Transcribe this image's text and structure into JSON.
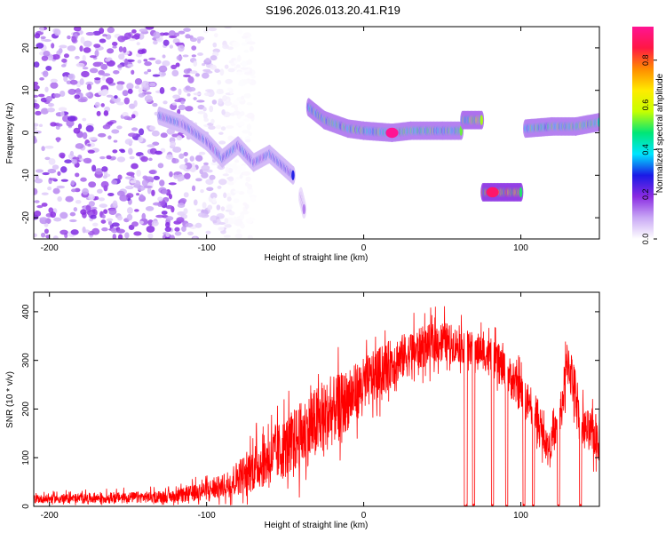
{
  "title": "S196.2026.013.20.41.R19",
  "chart_data": [
    {
      "type": "heatmap",
      "title": "S196.2026.013.20.41.R19",
      "xlabel": "Height of straight line (km)",
      "ylabel": "Frequency (Hz)",
      "xlim": [
        -210,
        150
      ],
      "ylim": [
        -25,
        25
      ],
      "xticks": [
        -200,
        -100,
        0,
        100
      ],
      "yticks": [
        -20,
        -10,
        0,
        10,
        20
      ],
      "colorbar": {
        "label": "Normalized spectral amplitude",
        "range": [
          0,
          0.95
        ],
        "ticks": [
          "0.0",
          "0.2",
          "0.4",
          "0.6",
          "0.8"
        ],
        "tick_values": [
          0.0,
          0.2,
          0.4,
          0.6,
          0.8
        ],
        "colors": [
          "#ffffff",
          "#c9a8f5",
          "#8a2be2",
          "#1a1ae6",
          "#00e5ff",
          "#00e676",
          "#c6ff00",
          "#ffeb00",
          "#ff8c00",
          "#ff1744",
          "#ff1493"
        ]
      },
      "traces": [
        {
          "name": "noise scatter",
          "x_range": [
            -210,
            -90
          ],
          "f_range": [
            -25,
            25
          ],
          "amplitude": 0.1
        },
        {
          "name": "descending track",
          "points": [
            [
              -130,
              4
            ],
            [
              -115,
              2
            ],
            [
              -100,
              -2
            ],
            [
              -90,
              -6
            ],
            [
              -80,
              -3
            ],
            [
              -70,
              -7
            ],
            [
              -60,
              -5
            ],
            [
              -45,
              -10
            ]
          ],
          "amplitude": 0.3
        },
        {
          "name": "low branch",
          "points": [
            [
              -40,
              -15
            ],
            [
              -38,
              -18
            ]
          ],
          "amplitude": 0.15
        },
        {
          "name": "main carrier",
          "points": [
            [
              -35,
              6
            ],
            [
              -25,
              3
            ],
            [
              -10,
              1
            ],
            [
              0,
              0.5
            ],
            [
              18,
              0
            ],
            [
              30,
              0.5
            ],
            [
              50,
              0.5
            ],
            [
              62,
              0.5
            ]
          ],
          "amplitude": 0.5,
          "peak": {
            "x": 18,
            "f": 0,
            "amplitude": 0.95
          }
        },
        {
          "name": "offset segment",
          "points": [
            [
              63,
              3
            ],
            [
              75,
              3
            ]
          ],
          "amplitude": 0.55
        },
        {
          "name": "shifted band",
          "points": [
            [
              76,
              -14
            ],
            [
              100,
              -14
            ]
          ],
          "amplitude": 0.7,
          "peak": {
            "x": 82,
            "f": -14,
            "amplitude": 0.9
          }
        },
        {
          "name": "resumed carrier",
          "points": [
            [
              103,
              1
            ],
            [
              120,
              1.5
            ],
            [
              135,
              1.5
            ],
            [
              150,
              2.5
            ]
          ],
          "amplitude": 0.5
        }
      ]
    },
    {
      "type": "line",
      "xlabel": "Height of straight line (km)",
      "ylabel": "SNR (10 * v/v)",
      "xlim": [
        -210,
        150
      ],
      "ylim": [
        0,
        440
      ],
      "xticks": [
        -200,
        -100,
        0,
        100
      ],
      "yticks": [
        0,
        100,
        200,
        300,
        400
      ],
      "color": "#ff0000",
      "envelope": [
        {
          "x": -210,
          "base": 15,
          "spread": 12
        },
        {
          "x": -120,
          "base": 20,
          "spread": 18
        },
        {
          "x": -90,
          "base": 40,
          "spread": 35
        },
        {
          "x": -70,
          "base": 80,
          "spread": 70
        },
        {
          "x": -50,
          "base": 120,
          "spread": 90
        },
        {
          "x": -30,
          "base": 170,
          "spread": 110
        },
        {
          "x": -10,
          "base": 220,
          "spread": 90
        },
        {
          "x": 0,
          "base": 250,
          "spread": 80
        },
        {
          "x": 20,
          "base": 300,
          "spread": 70
        },
        {
          "x": 40,
          "base": 330,
          "spread": 60
        },
        {
          "x": 50,
          "base": 340,
          "spread": 60
        },
        {
          "x": 62,
          "base": 330,
          "spread": 50
        },
        {
          "x": 75,
          "base": 320,
          "spread": 50
        },
        {
          "x": 90,
          "base": 280,
          "spread": 60
        },
        {
          "x": 105,
          "base": 210,
          "spread": 60
        },
        {
          "x": 118,
          "base": 120,
          "spread": 40
        },
        {
          "x": 125,
          "base": 180,
          "spread": 60
        },
        {
          "x": 130,
          "base": 300,
          "spread": 80
        },
        {
          "x": 140,
          "base": 160,
          "spread": 60
        },
        {
          "x": 150,
          "base": 140,
          "spread": 70
        }
      ],
      "dropouts": [
        {
          "x": 65,
          "width": 2
        },
        {
          "x": 70,
          "width": 1.5
        },
        {
          "x": 82,
          "width": 1.5
        },
        {
          "x": 91,
          "width": 1.5
        },
        {
          "x": 102,
          "width": 1.5
        },
        {
          "x": 108,
          "width": 1.5
        },
        {
          "x": 124,
          "width": 1.5
        },
        {
          "x": 138,
          "width": 1.5
        }
      ]
    }
  ]
}
